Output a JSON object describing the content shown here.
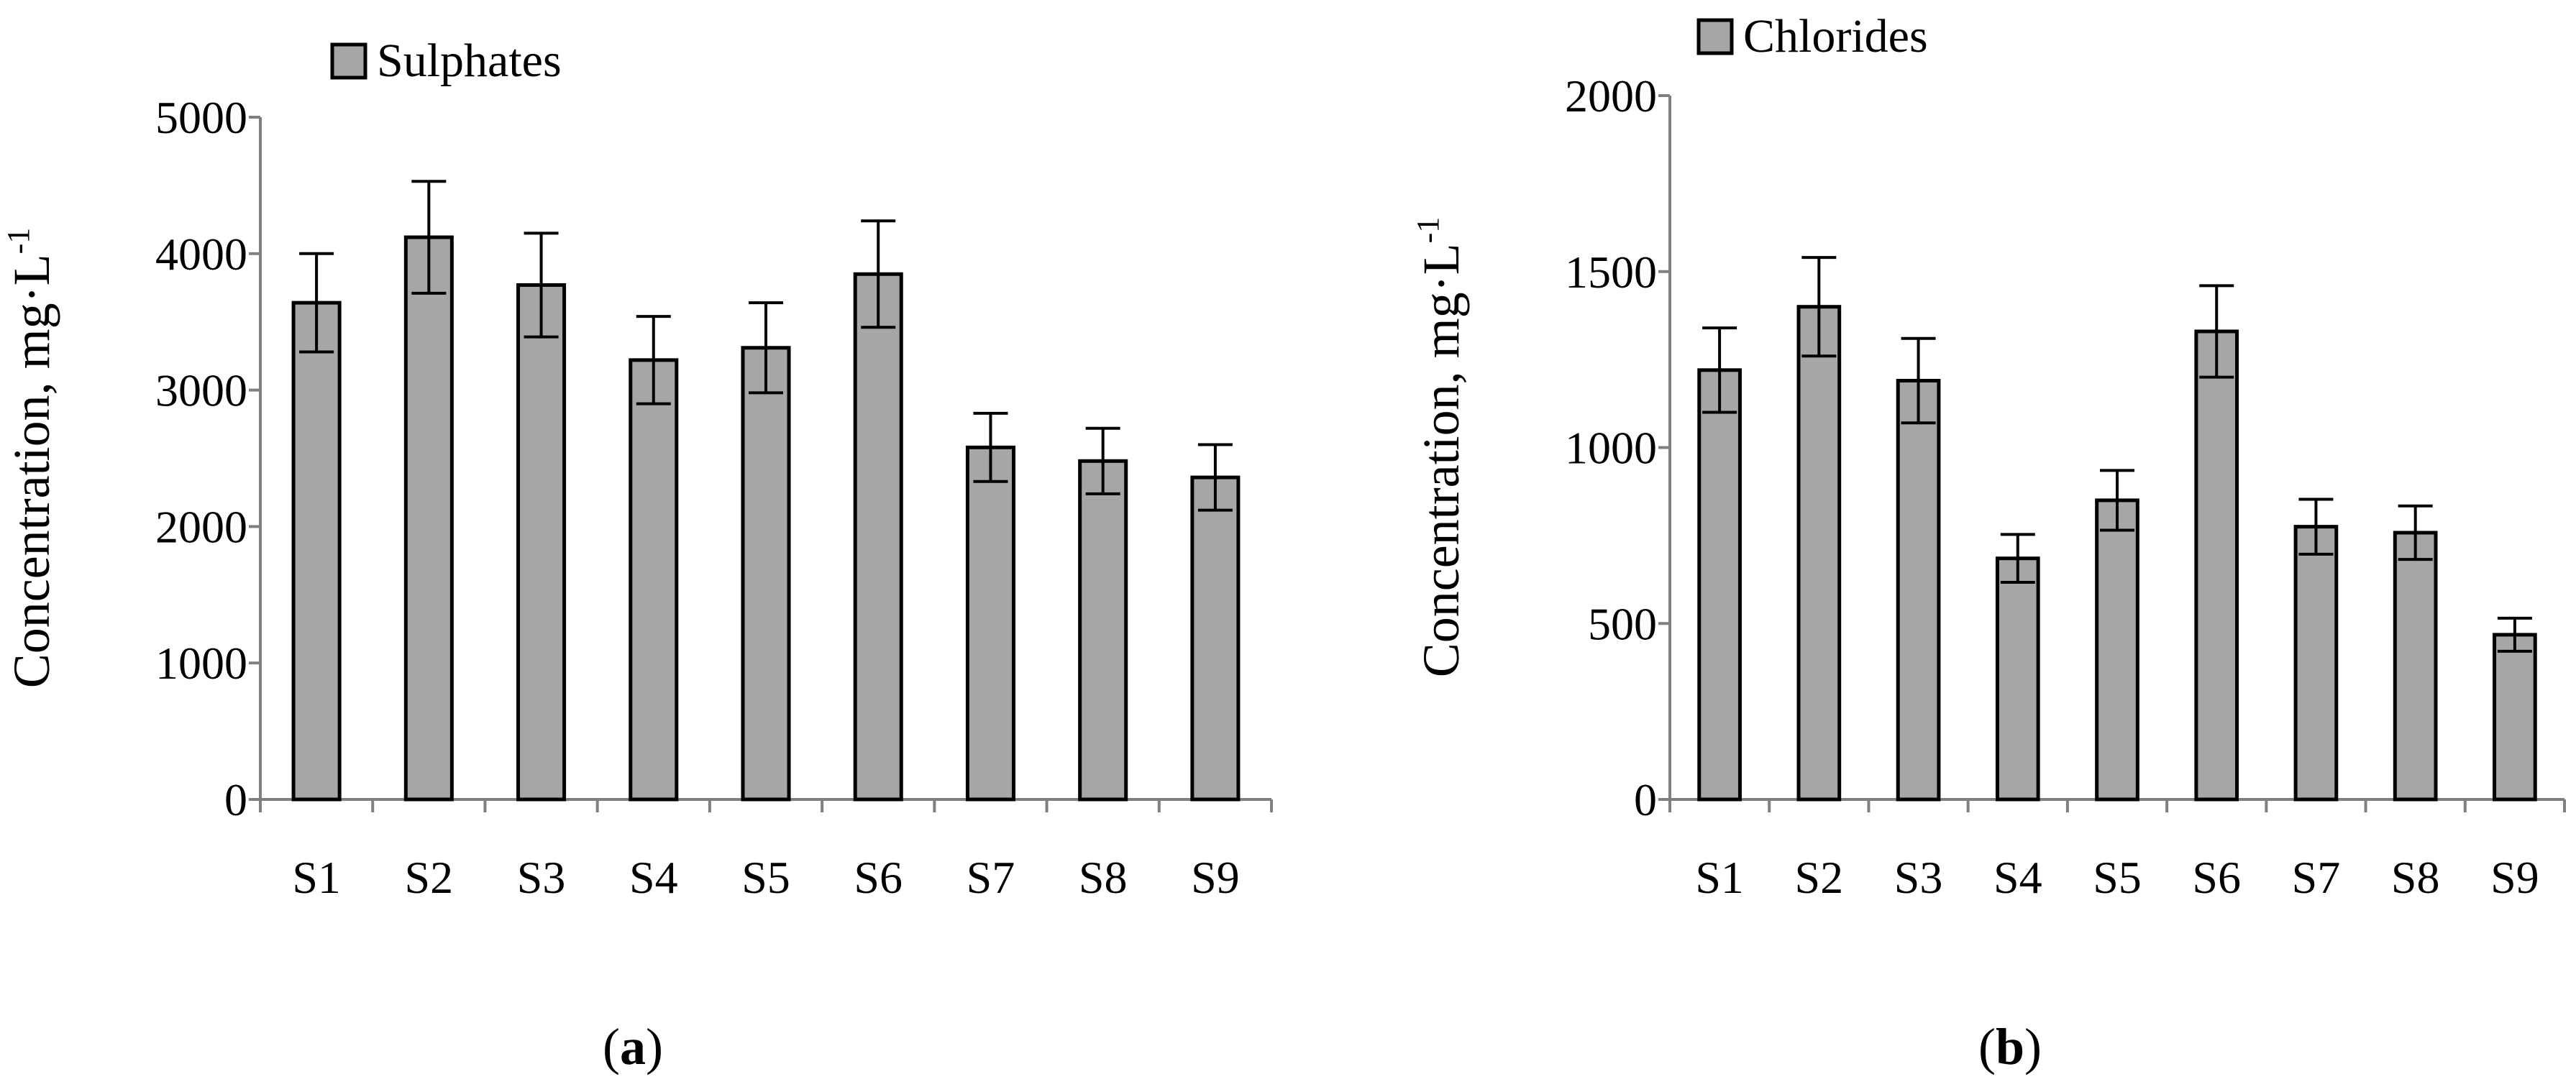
{
  "colors": {
    "bar_fill": "#a6a6a6",
    "bar_stroke": "#000000",
    "axis": "#808080",
    "text": "#000000"
  },
  "chart_data": [
    {
      "type": "bar",
      "panel_label": "a",
      "legend": "Sulphates",
      "legend_position": "top",
      "categories": [
        "S1",
        "S2",
        "S3",
        "S4",
        "S5",
        "S6",
        "S7",
        "S8",
        "S9"
      ],
      "values": [
        3640,
        4120,
        3770,
        3220,
        3310,
        3850,
        2580,
        2480,
        2360
      ],
      "errors": [
        360,
        410,
        380,
        320,
        330,
        390,
        250,
        240,
        240
      ],
      "ylabel": "Concentration, mg·L",
      "ylabel_sup": "-1",
      "ylim": [
        0,
        5000
      ],
      "yticks": [
        0,
        1000,
        2000,
        3000,
        4000,
        5000
      ],
      "grid": false
    },
    {
      "type": "bar",
      "panel_label": "b",
      "legend": "Chlorides",
      "legend_position": "top",
      "categories": [
        "S1",
        "S2",
        "S3",
        "S4",
        "S5",
        "S6",
        "S7",
        "S8",
        "S9"
      ],
      "values": [
        1220,
        1400,
        1190,
        685,
        850,
        1330,
        775,
        758,
        468
      ],
      "errors": [
        120,
        140,
        120,
        68,
        85,
        130,
        78,
        76,
        47
      ],
      "ylabel": "Concentration, mg·L",
      "ylabel_sup": "-1",
      "ylim": [
        0,
        2000
      ],
      "yticks": [
        0,
        500,
        1000,
        1500,
        2000
      ],
      "grid": false
    }
  ]
}
